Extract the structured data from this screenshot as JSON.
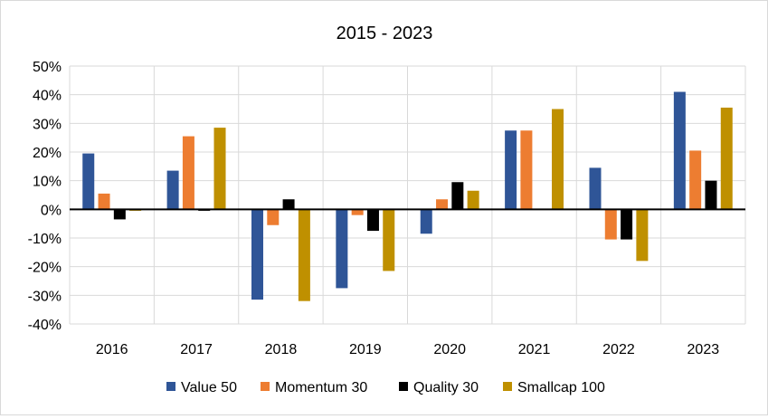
{
  "chart_data": {
    "type": "bar",
    "title": "2015 - 2023",
    "categories": [
      "2016",
      "2017",
      "2018",
      "2019",
      "2020",
      "2021",
      "2022",
      "2023"
    ],
    "series": [
      {
        "name": "Value 50",
        "color": "#2F5597",
        "values": [
          19.5,
          13.5,
          -31.5,
          -27.5,
          -8.5,
          27.5,
          14.5,
          41.0
        ]
      },
      {
        "name": "Momentum 30",
        "color": "#ED7D31",
        "values": [
          5.5,
          25.5,
          -5.5,
          -2.0,
          3.5,
          27.5,
          -10.5,
          20.5
        ]
      },
      {
        "name": "Quality 30",
        "color": "#000000",
        "values": [
          -3.5,
          -0.5,
          3.5,
          -7.5,
          9.5,
          0,
          -10.5,
          10.0
        ]
      },
      {
        "name": "Smallcap 100",
        "color": "#BF9000",
        "values": [
          -0.5,
          28.5,
          -32.0,
          -21.5,
          6.5,
          35.0,
          -18.0,
          35.5
        ]
      }
    ],
    "ylim": [
      -40,
      50
    ],
    "yticks": [
      "-40%",
      "-30%",
      "-20%",
      "-10%",
      "0%",
      "10%",
      "20%",
      "30%",
      "40%",
      "50%"
    ],
    "grid": true,
    "legend": "bottom",
    "xlabel": "",
    "ylabel": ""
  }
}
